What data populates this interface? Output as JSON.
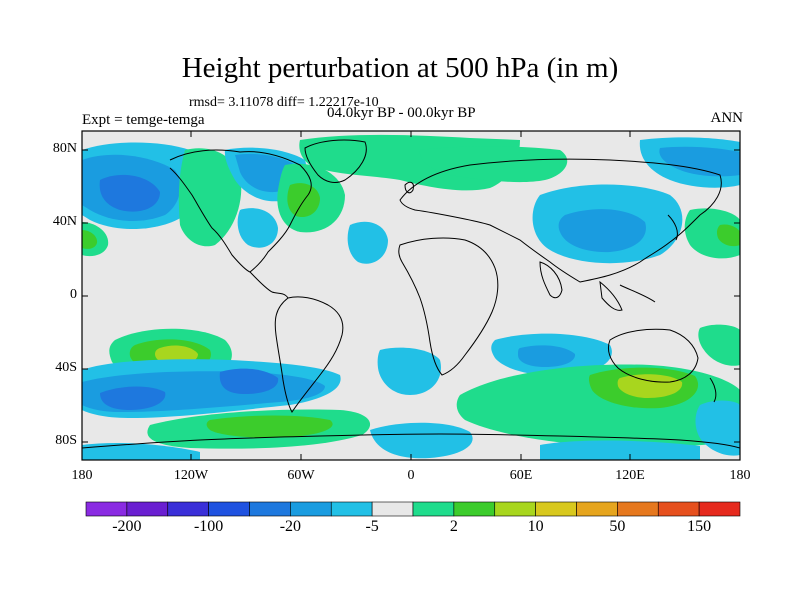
{
  "title": "Height perturbation at 500 hPa (in m)",
  "stats": "rmsd= 3.11078 diff= 1.22217e-10",
  "left_label": "Expt = temge-temga",
  "center_label": "04.0kyr BP - 00.0kyr BP",
  "right_label": "ANN",
  "lat_ticks": [
    "80N",
    "40N",
    "0",
    "40S",
    "80S"
  ],
  "lon_ticks": [
    "180",
    "120W",
    "60W",
    "0",
    "60E",
    "120E",
    "180"
  ],
  "colorbar": {
    "colors": [
      "#8a2be2",
      "#6a1fd1",
      "#3a2fd8",
      "#1f52e0",
      "#1e78de",
      "#1a9ce0",
      "#22c0e6",
      "#e8e8e8",
      "#1fdc8c",
      "#3ccc2c",
      "#a8d61e",
      "#d8c81e",
      "#e6a51e",
      "#e6781e",
      "#e6501e",
      "#e62a1e"
    ],
    "labels": [
      "-200",
      "-100",
      "-20",
      "-5",
      "2",
      "10",
      "50",
      "150"
    ]
  },
  "colors": {
    "neg_strong": "#1f52e0",
    "neg_mid": "#1e78de",
    "neg_light": "#1a9ce0",
    "neg_faint": "#22c0e6",
    "neutral": "#e8e8e8",
    "pos_light": "#1fdc8c",
    "pos_mid": "#3ccc2c",
    "pos_strong": "#a8d61e"
  }
}
